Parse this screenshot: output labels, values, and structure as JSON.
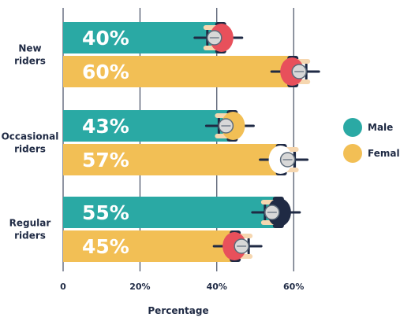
{
  "chart_data": {
    "type": "bar",
    "orientation": "horizontal",
    "categories": [
      "New\nriders",
      "Occasional\nriders",
      "Regular\nriders"
    ],
    "series": [
      {
        "name": "Male",
        "color": "#2aa9a4",
        "values": [
          40,
          43,
          55
        ],
        "labels": [
          "40%",
          "43%",
          "55%"
        ]
      },
      {
        "name": "Female",
        "color": "#f2bf55",
        "values": [
          60,
          57,
          45
        ],
        "labels": [
          "60%",
          "57%",
          "45%"
        ]
      }
    ],
    "xlabel": "Percentage",
    "xlim": [
      0,
      70
    ],
    "xticks": [
      0,
      20,
      40,
      60
    ],
    "xtick_labels": [
      "0",
      "20%",
      "40%",
      "60%"
    ],
    "grid": true,
    "legend_position": "right",
    "decoration": "top-down-cyclist-icons-at-bar-ends"
  }
}
